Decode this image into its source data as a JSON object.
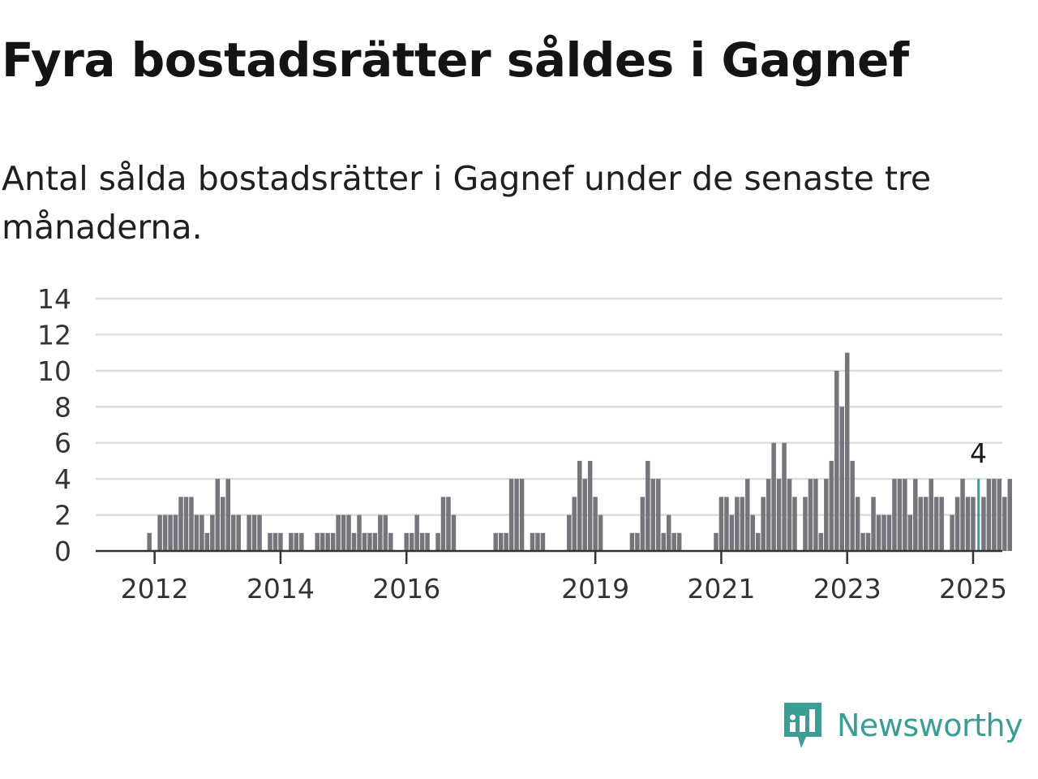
{
  "title": "Fyra bostadsrätter såldes i Gagnef",
  "subtitle": "Antal sålda bostadsrätter i Gagnef under de senaste tre månaderna.",
  "brand": {
    "name": "Newsworthy",
    "color": "#3a9e95"
  },
  "colors": {
    "bar": "#76757c",
    "highlight": "#26a69a",
    "grid": "#dddddd",
    "axis": "#333333"
  },
  "chart_data": {
    "type": "bar",
    "title": "Fyra bostadsrätter såldes i Gagnef",
    "subtitle": "Antal sålda bostadsrätter i Gagnef under de senaste tre månaderna.",
    "xlabel": "",
    "ylabel": "",
    "ylim": [
      0,
      14
    ],
    "yticks": [
      0,
      2,
      4,
      6,
      8,
      10,
      12,
      14
    ],
    "xticks": [
      "2012",
      "2014",
      "2016",
      "2019",
      "2021",
      "2023",
      "2025"
    ],
    "grid": true,
    "x_start": "2011-10",
    "highlight": {
      "index": 160,
      "label": "4"
    },
    "values": [
      0,
      0,
      1,
      0,
      2,
      2,
      2,
      2,
      3,
      3,
      3,
      2,
      2,
      1,
      2,
      4,
      3,
      4,
      2,
      2,
      0,
      2,
      2,
      2,
      0,
      1,
      1,
      1,
      0,
      1,
      1,
      1,
      0,
      0,
      1,
      1,
      1,
      1,
      2,
      2,
      2,
      1,
      2,
      1,
      1,
      1,
      2,
      2,
      1,
      0,
      0,
      1,
      1,
      2,
      1,
      1,
      0,
      1,
      3,
      3,
      2,
      0,
      0,
      0,
      0,
      0,
      0,
      0,
      1,
      1,
      1,
      4,
      4,
      4,
      0,
      1,
      1,
      1,
      0,
      0,
      0,
      0,
      2,
      3,
      5,
      4,
      5,
      3,
      2,
      0,
      0,
      0,
      0,
      0,
      1,
      1,
      3,
      5,
      4,
      4,
      1,
      2,
      1,
      1,
      0,
      0,
      0,
      0,
      0,
      0,
      1,
      3,
      3,
      2,
      3,
      3,
      4,
      2,
      1,
      3,
      4,
      6,
      4,
      6,
      4,
      3,
      0,
      3,
      4,
      4,
      1,
      4,
      5,
      10,
      8,
      11,
      5,
      3,
      1,
      1,
      3,
      2,
      2,
      2,
      4,
      4,
      4,
      2,
      4,
      3,
      3,
      4,
      3,
      3,
      0,
      2,
      3,
      4,
      3,
      3,
      4,
      3,
      4,
      4,
      4,
      3,
      4
    ]
  }
}
